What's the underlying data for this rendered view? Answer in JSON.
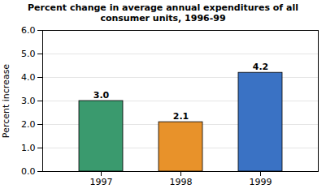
{
  "chart_data": {
    "type": "bar",
    "title": "Percent change in average annual expenditures of all\nconsumer units, 1996-99",
    "categories": [
      "1997",
      "1998",
      "1999"
    ],
    "values": [
      3.0,
      2.1,
      4.2
    ],
    "value_labels": [
      "3.0",
      "2.1",
      "4.2"
    ],
    "data_labels": true,
    "colors": [
      "#3a9a6e",
      "#e8922a",
      "#3a72c4"
    ],
    "ylabel": "Percent increase",
    "ylim": [
      0,
      6.0
    ],
    "yticks": [
      {
        "value": 0,
        "label": "0.0"
      },
      {
        "value": 1,
        "label": "1.0"
      },
      {
        "value": 2,
        "label": "2.0"
      },
      {
        "value": 3,
        "label": "3.0"
      },
      {
        "value": 4,
        "label": "4.0"
      },
      {
        "value": 5,
        "label": "5.0"
      },
      {
        "value": 6,
        "label": "6.0"
      }
    ],
    "grid": true
  }
}
